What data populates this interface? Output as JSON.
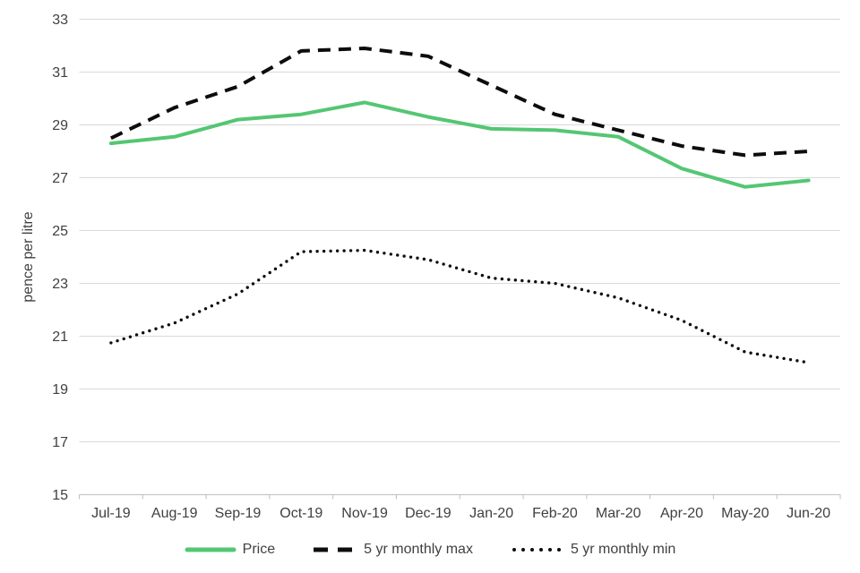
{
  "chart_data": {
    "type": "line",
    "title": "",
    "xlabel": "",
    "ylabel": "pence per litre",
    "ylim": [
      15,
      33
    ],
    "yticks": [
      15,
      17,
      19,
      21,
      23,
      25,
      27,
      29,
      31,
      33
    ],
    "grid": "horizontal",
    "legend_position": "bottom",
    "categories": [
      "Jul-19",
      "Aug-19",
      "Sep-19",
      "Oct-19",
      "Nov-19",
      "Dec-19",
      "Jan-20",
      "Feb-20",
      "Mar-20",
      "Apr-20",
      "May-20",
      "Jun-20"
    ],
    "series": [
      {
        "name": "Price",
        "style": "solid",
        "color": "#54c673",
        "values": [
          28.3,
          28.55,
          29.2,
          29.4,
          29.85,
          29.3,
          28.85,
          28.8,
          28.55,
          27.35,
          26.65,
          26.9
        ]
      },
      {
        "name": "5 yr monthly max",
        "style": "dashed",
        "color": "#0d0d0d",
        "values": [
          28.5,
          29.65,
          30.45,
          31.8,
          31.9,
          31.6,
          30.5,
          29.4,
          28.8,
          28.2,
          27.85,
          28.0
        ]
      },
      {
        "name": "5 yr monthly min",
        "style": "dotted",
        "color": "#0d0d0d",
        "values": [
          20.75,
          21.5,
          22.6,
          24.2,
          24.25,
          23.9,
          23.2,
          23.0,
          22.45,
          21.6,
          20.4,
          20.0
        ]
      }
    ],
    "colors": {
      "gridline": "#d9d9d9",
      "axis_line": "#c9c9c9",
      "tick_mark": "#bfbfbf",
      "text": "#404040",
      "background": "#ffffff"
    }
  }
}
